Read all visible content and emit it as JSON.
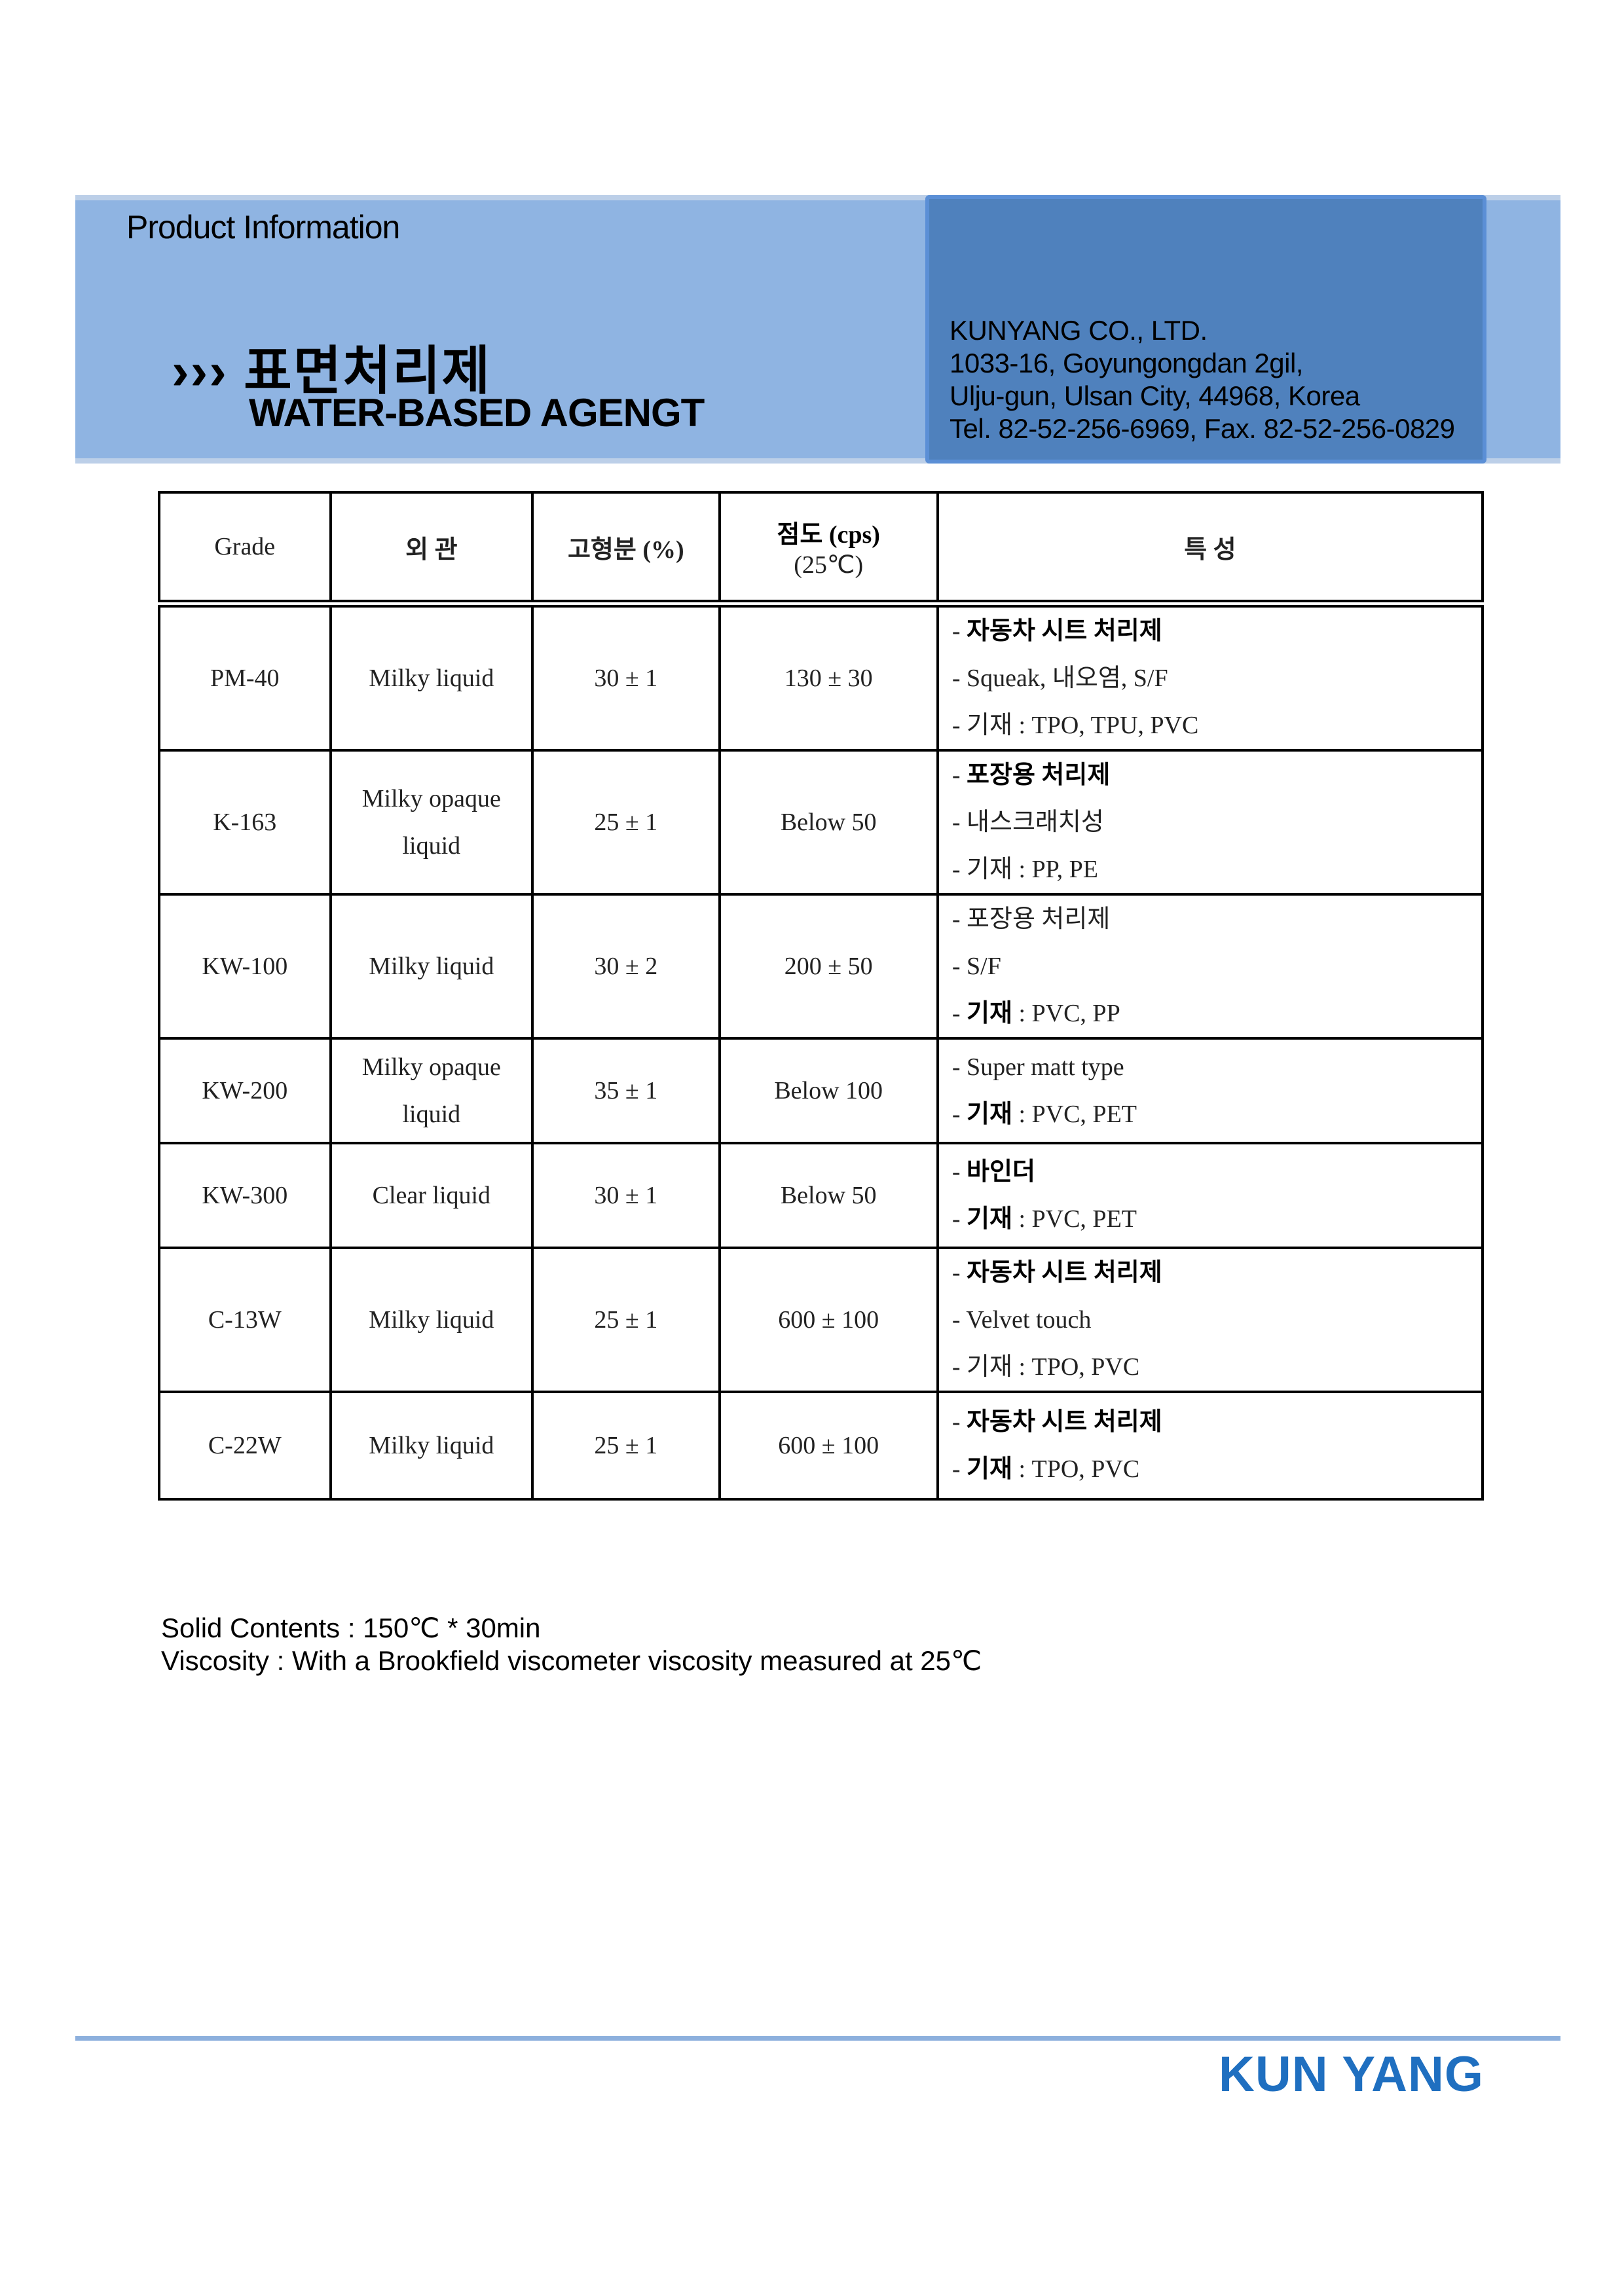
{
  "header": {
    "label": "Product Information",
    "title_kr": "››› 표면처리제",
    "title_en": "WATER-BASED AGENGT",
    "address_lines": [
      "KUNYANG CO., LTD.",
      "1033-16, Goyungongdan 2gil,",
      "Ulju-gun, Ulsan City, 44968, Korea",
      "Tel. 82-52-256-6969,  Fax. 82-52-256-0829"
    ]
  },
  "colors": {
    "band": "#8fb4e2",
    "box": "#4f81bd",
    "logo": "#1f6fc0"
  },
  "table": {
    "headers": [
      "Grade",
      "외 관",
      "고형분 (%)",
      "점도 (cps)",
      "(25℃)",
      "특 성"
    ],
    "rows": [
      {
        "grade": "PM-40",
        "appearance": "Milky liquid",
        "solid": "30 ± 1",
        "viscosity": "130 ± 30",
        "features": [
          {
            "pre": "- ",
            "b": "자동차 시트 처리제",
            "t": ""
          },
          {
            "pre": "- ",
            "b": "",
            "t": "Squeak, 내오염, S/F"
          },
          {
            "pre": "- ",
            "b": "",
            "t": "기재 : TPO, TPU, PVC"
          }
        ]
      },
      {
        "grade": "K-163",
        "appearance": "Milky opaque liquid",
        "solid": "25 ± 1",
        "viscosity": "Below 50",
        "features": [
          {
            "pre": "- ",
            "b": "포장용 처리제",
            "t": ""
          },
          {
            "pre": "- ",
            "b": "",
            "t": "내스크래치성"
          },
          {
            "pre": "- ",
            "b": "",
            "t": "기재 : PP, PE"
          }
        ]
      },
      {
        "grade": "KW-100",
        "appearance": "Milky liquid",
        "solid": "30 ± 2",
        "viscosity": "200 ± 50",
        "features": [
          {
            "pre": "- ",
            "b": "",
            "t": "포장용 처리제"
          },
          {
            "pre": "- ",
            "b": "",
            "t": "S/F"
          },
          {
            "pre": "- ",
            "b": "기재",
            "t": " : PVC, PP"
          }
        ]
      },
      {
        "grade": "KW-200",
        "appearance": "Milky opaque liquid",
        "solid": "35 ± 1",
        "viscosity": "Below 100",
        "features": [
          {
            "pre": "- ",
            "b": "",
            "t": "Super matt type"
          },
          {
            "pre": "- ",
            "b": "기재",
            "t": " : PVC, PET"
          }
        ]
      },
      {
        "grade": "KW-300",
        "appearance": "Clear liquid",
        "solid": "30 ± 1",
        "viscosity": "Below 50",
        "features": [
          {
            "pre": "- ",
            "b": "바인더",
            "t": ""
          },
          {
            "pre": "- ",
            "b": "기재",
            "t": " : PVC, PET"
          }
        ]
      },
      {
        "grade": "C-13W",
        "appearance": "Milky liquid",
        "solid": "25 ± 1",
        "viscosity": "600 ± 100",
        "features": [
          {
            "pre": "- ",
            "b": "자동차 시트 처리제",
            "t": ""
          },
          {
            "pre": "- ",
            "b": "",
            "t": "Velvet touch"
          },
          {
            "pre": "- ",
            "b": "",
            "t": "기재 : TPO, PVC"
          }
        ]
      },
      {
        "grade": "C-22W",
        "appearance": "Milky liquid",
        "solid": "25 ± 1",
        "viscosity": "600 ± 100",
        "features": [
          {
            "pre": "- ",
            "b": "자동차 시트 처리제",
            "t": ""
          },
          {
            "pre": "- ",
            "b": "기재",
            "t": " : TPO, PVC"
          }
        ]
      }
    ]
  },
  "notes": [
    "Solid Contents : 150℃ * 30min",
    "Viscosity : With a Brookfield viscometer viscosity measured at 25℃"
  ],
  "footer": {
    "logo": "KUN YANG"
  }
}
